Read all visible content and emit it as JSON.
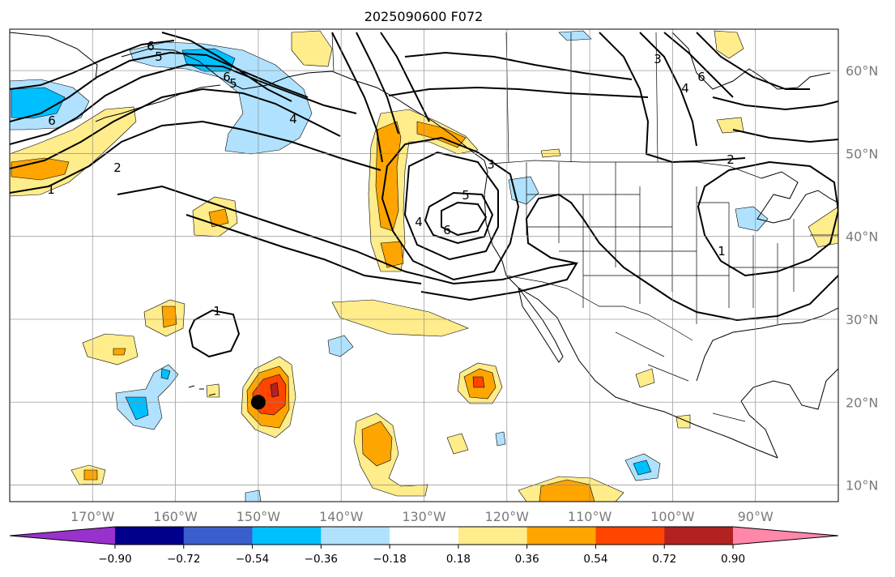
{
  "title": "2025090600 F072",
  "map": {
    "lon_range": [
      -180,
      -80
    ],
    "lat_range": [
      8,
      65
    ],
    "lon_ticks": [
      "170°W",
      "160°W",
      "150°W",
      "140°W",
      "130°W",
      "120°W",
      "110°W",
      "100°W",
      "90°W"
    ],
    "lon_tick_values": [
      -170,
      -160,
      -150,
      -140,
      -130,
      -120,
      -110,
      -100,
      -90
    ],
    "lat_ticks": [
      "60°N",
      "50°N",
      "40°N",
      "30°N",
      "20°N",
      "10°N"
    ],
    "lat_tick_values": [
      60,
      50,
      40,
      30,
      20,
      10
    ],
    "grid": true,
    "marker": {
      "lon": -150,
      "lat": 20,
      "color": "#000000"
    }
  },
  "colorbar": {
    "labels": [
      "−0.90",
      "−0.72",
      "−0.54",
      "−0.36",
      "−0.18",
      "0.18",
      "0.36",
      "0.54",
      "0.72",
      "0.90"
    ],
    "colors": [
      "#9932cc",
      "#00008b",
      "#3a5fcd",
      "#00bfff",
      "#b0e2ff",
      "#ffffff",
      "#ffec8b",
      "#ffa500",
      "#ff4500",
      "#b22222",
      "#ff88aa"
    ],
    "extend": "both"
  },
  "contour_labels": [
    "6",
    "5",
    "6",
    "4",
    "2",
    "1",
    "3",
    "5",
    "4",
    "6",
    "3",
    "6",
    "4",
    "5",
    "6",
    "2",
    "1",
    "1"
  ]
}
